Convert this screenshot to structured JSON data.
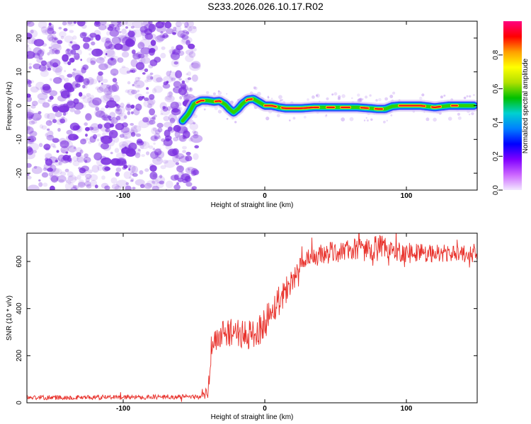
{
  "title": "S233.2026.026.10.17.R02",
  "colors": {
    "snr_line": "#e8302a",
    "frame": "#000000",
    "noise_purple": "#7b2fe0"
  },
  "chart_data": [
    {
      "type": "heatmap",
      "ylabel": "Frequency (Hz)",
      "xlabel": "Height of straight line (km)",
      "xlim": [
        -168,
        150
      ],
      "ylim": [
        -25,
        25
      ],
      "xticks": [
        -100,
        0,
        100
      ],
      "xtick_labels": [
        "-100",
        "0",
        "100"
      ],
      "yticks": [
        -20,
        -10,
        0,
        10,
        20
      ],
      "ytick_labels": [
        "-20",
        "-10",
        "0",
        "10",
        "20"
      ],
      "noise_region_x": [
        -168,
        -48
      ],
      "ridge": {
        "x": [
          -58,
          -54,
          -50,
          -45,
          -40,
          -36,
          -32,
          -28,
          -25,
          -22,
          -19,
          -16,
          -12,
          -8,
          -4,
          0,
          5,
          10,
          15,
          25,
          35,
          45,
          55,
          65,
          75,
          80,
          85,
          90,
          95,
          100,
          110,
          120,
          130,
          140,
          148
        ],
        "y": [
          -4.5,
          -2.5,
          0.5,
          1.5,
          1.5,
          1.2,
          1.4,
          0.4,
          -1.0,
          -2.0,
          -1.0,
          0.5,
          1.8,
          2.0,
          1.0,
          0.0,
          0.0,
          -0.5,
          -0.8,
          -0.8,
          -0.5,
          -0.5,
          -0.5,
          -0.5,
          -0.8,
          -1.0,
          -1.0,
          -0.2,
          0.0,
          0.0,
          0.0,
          -0.5,
          0.0,
          0.0,
          0.0
        ]
      },
      "colorbar": {
        "label": "Normalized spectral amplitude",
        "range": [
          0,
          1
        ],
        "ticks": [
          0.0,
          0.2,
          0.4,
          0.6,
          0.8
        ],
        "tick_labels": [
          "0.0",
          "0.2",
          "0.4",
          "0.6",
          "0.8"
        ],
        "colors": [
          "#f2e8ff",
          "#cc66ff",
          "#8000ff",
          "#0000ff",
          "#0080ff",
          "#00d0d0",
          "#00c000",
          "#b0e000",
          "#ffff00",
          "#ffa000",
          "#ff0000",
          "#ff0080"
        ]
      }
    },
    {
      "type": "line",
      "ylabel": "SNR (10 * v/v)",
      "xlabel": "Height of straight line (km)",
      "xlim": [
        -168,
        150
      ],
      "ylim": [
        0,
        720
      ],
      "xticks": [
        -100,
        0,
        100
      ],
      "xtick_labels": [
        "-100",
        "0",
        "100"
      ],
      "yticks": [
        0,
        200,
        400,
        600
      ],
      "ytick_labels": [
        "0",
        "200",
        "400",
        "600"
      ],
      "trend": {
        "x": [
          -168,
          -60,
          -45,
          -40,
          -38,
          -35,
          -30,
          -25,
          -20,
          -15,
          -10,
          -5,
          0,
          5,
          10,
          15,
          20,
          25,
          30,
          40,
          60,
          80,
          100,
          120,
          150
        ],
        "y": [
          22,
          25,
          25,
          40,
          220,
          270,
          290,
          300,
          305,
          280,
          290,
          300,
          340,
          390,
          440,
          480,
          530,
          570,
          600,
          630,
          650,
          655,
          640,
          635,
          630
        ]
      },
      "noise_amplitude": {
        "x": [
          -168,
          -45,
          -38,
          10,
          20,
          60,
          80,
          95,
          150
        ],
        "y": [
          10,
          10,
          60,
          70,
          50,
          45,
          60,
          45,
          35
        ]
      }
    }
  ]
}
